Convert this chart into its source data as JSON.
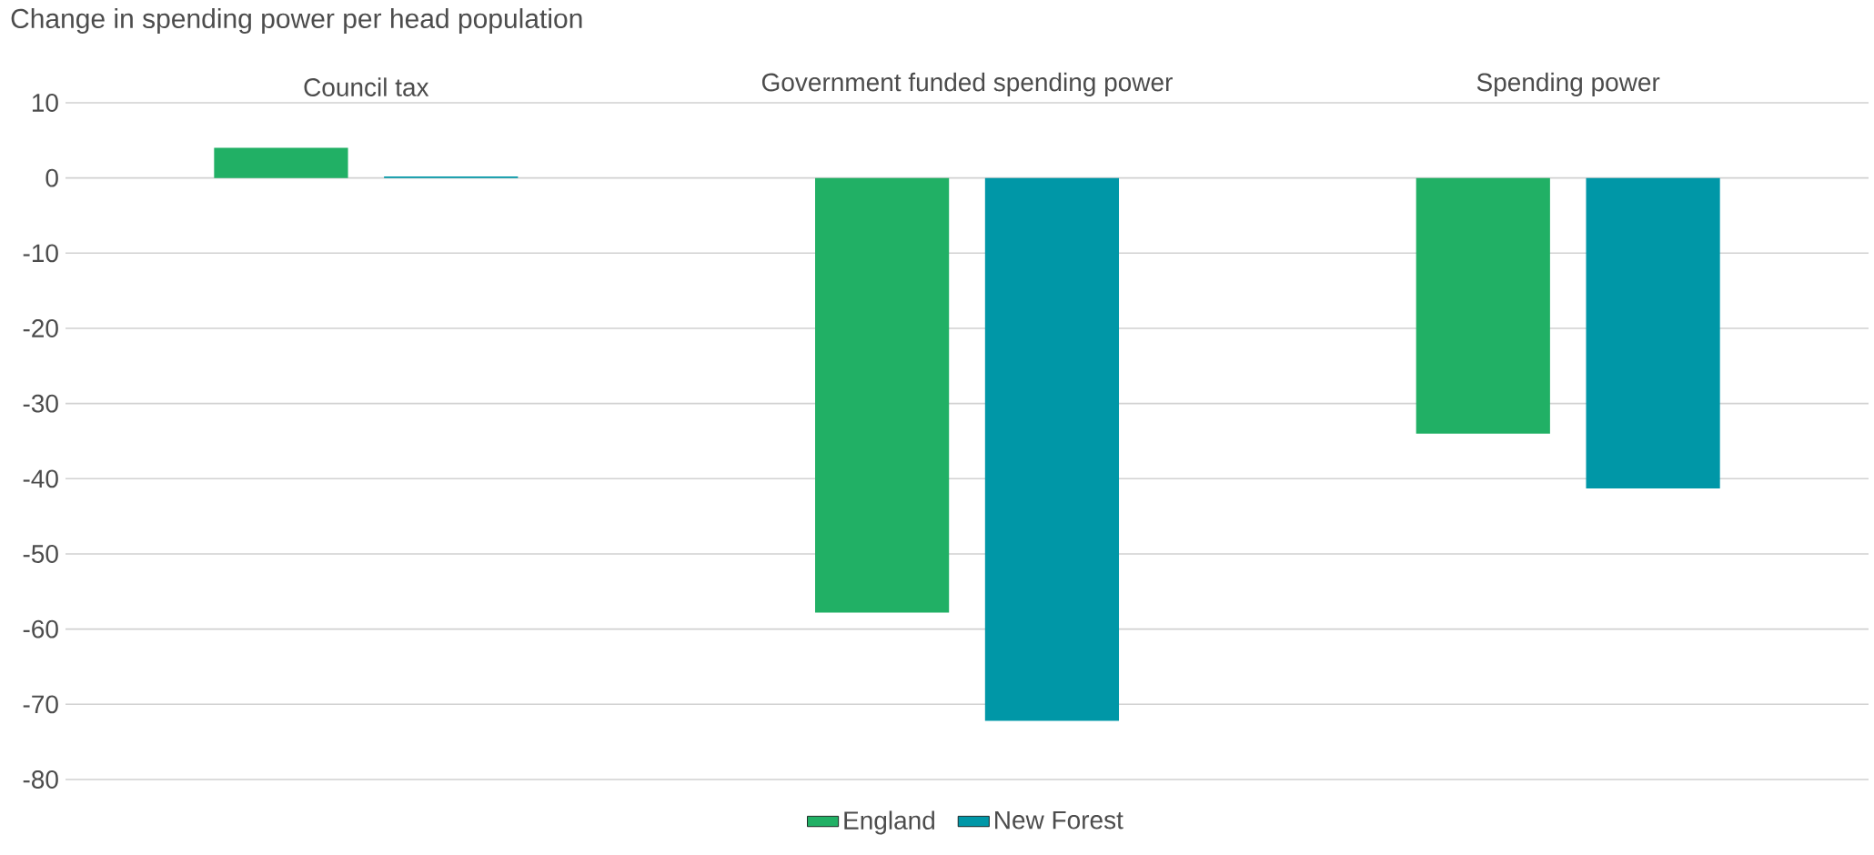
{
  "chart_data": {
    "type": "bar",
    "title": "Change in spending power per head population",
    "categories": [
      "Council tax",
      "Government funded spending power",
      "Spending power"
    ],
    "series": [
      {
        "name": "England",
        "color": "#21b065",
        "values": [
          4.0,
          -57.8,
          -34.0
        ]
      },
      {
        "name": "New Forest",
        "color": "#0097a7",
        "values": [
          0.2,
          -72.2,
          -41.3
        ]
      }
    ],
    "ylim": [
      -80,
      10
    ],
    "yticks": [
      -80,
      -70,
      -60,
      -50,
      -40,
      -30,
      -20,
      -10,
      0,
      10
    ],
    "grid": "y",
    "legend": "bottom"
  }
}
